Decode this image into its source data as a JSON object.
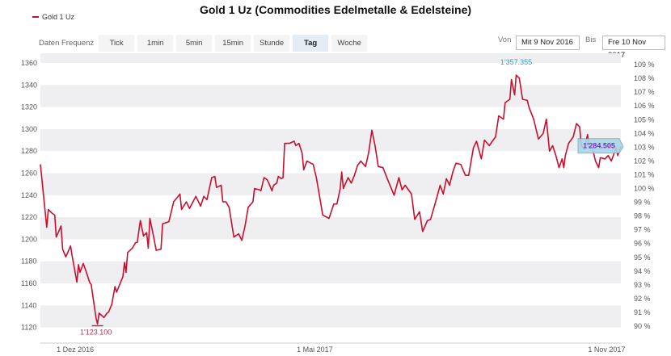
{
  "title": "Gold 1 Uz (Commodities Edelmetalle & Edelsteine)",
  "legend": {
    "label": "Gold 1 Uz",
    "color": "#c8102e"
  },
  "toolbar": {
    "label": "Daten Frequenz",
    "buttons": [
      "Tick",
      "1min",
      "5min",
      "15min",
      "Stunde",
      "Tag",
      "Woche"
    ],
    "selected": "Tag",
    "from_label": "Von",
    "from_value": "Mit 9 Nov 2016",
    "to_label": "Bis",
    "to_value": "Fre 10 Nov 2017"
  },
  "chart_data": {
    "type": "line",
    "title": "Gold 1 Uz (Commodities Edelmetalle & Edelsteine)",
    "x_range": [
      "2016-11-09",
      "2017-11-10"
    ],
    "x_ticks": [
      {
        "date": "2016-12-01",
        "label": "1 Dez 2016"
      },
      {
        "date": "2017-05-01",
        "label": "1 Mai 2017"
      },
      {
        "date": "2017-11-01",
        "label": "1 Nov 2017"
      }
    ],
    "y_left": {
      "range": [
        1106,
        1369
      ],
      "ticks": [
        1120,
        1140,
        1160,
        1180,
        1200,
        1220,
        1240,
        1260,
        1280,
        1300,
        1320,
        1340,
        1360
      ]
    },
    "y_right": {
      "range": [
        89,
        109.5
      ],
      "ticks": [
        "90 %",
        "91 %",
        "92 %",
        "93 %",
        "94 %",
        "95 %",
        "96 %",
        "97 %",
        "98 %",
        "99 %",
        "100 %",
        "101 %",
        "102 %",
        "103 %",
        "104 %",
        "105 %",
        "106 %",
        "107 %",
        "108 %",
        "109 %"
      ]
    },
    "grid": "alternating horizontal bands",
    "series": [
      {
        "name": "Gold 1 Uz",
        "color": "#c8102e",
        "dates": [
          "2016-11-09",
          "2016-11-13",
          "2016-11-14",
          "2016-11-16",
          "2016-11-18",
          "2016-11-19",
          "2016-11-22",
          "2016-11-23",
          "2016-11-25",
          "2016-11-28",
          "2016-11-29",
          "2016-12-02",
          "2016-12-03",
          "2016-12-04",
          "2016-12-06",
          "2016-12-08",
          "2016-12-10",
          "2016-12-11",
          "2016-12-14",
          "2016-12-15",
          "2016-12-16",
          "2016-12-19",
          "2016-12-21",
          "2016-12-22",
          "2016-12-24",
          "2016-12-26",
          "2016-12-27",
          "2016-12-29",
          "2016-12-31",
          "2017-01-01",
          "2017-01-02",
          "2017-01-03",
          "2017-01-06",
          "2017-01-08",
          "2017-01-09",
          "2017-01-11",
          "2017-01-13",
          "2017-01-15",
          "2017-01-16",
          "2017-01-17",
          "2017-01-19",
          "2017-01-21",
          "2017-01-24",
          "2017-01-25",
          "2017-01-29",
          "2017-02-01",
          "2017-02-05",
          "2017-02-06",
          "2017-02-09",
          "2017-02-11",
          "2017-02-15",
          "2017-02-18",
          "2017-02-20",
          "2017-02-22",
          "2017-02-25",
          "2017-02-27",
          "2017-02-28",
          "2017-03-03",
          "2017-03-04",
          "2017-03-06",
          "2017-03-08",
          "2017-03-11",
          "2017-03-14",
          "2017-03-16",
          "2017-03-18",
          "2017-03-20",
          "2017-03-23",
          "2017-03-24",
          "2017-03-27",
          "2017-03-28",
          "2017-03-30",
          "2017-04-01",
          "2017-04-02",
          "2017-04-04",
          "2017-04-05",
          "2017-04-07",
          "2017-04-08",
          "2017-04-10",
          "2017-04-11",
          "2017-04-12",
          "2017-04-15",
          "2017-04-18",
          "2017-04-19",
          "2017-04-21",
          "2017-04-23",
          "2017-04-24",
          "2017-04-26",
          "2017-04-30",
          "2017-05-02",
          "2017-05-04",
          "2017-05-06",
          "2017-05-10",
          "2017-05-13",
          "2017-05-15",
          "2017-05-17",
          "2017-05-18",
          "2017-05-19",
          "2017-05-22",
          "2017-05-24",
          "2017-05-26",
          "2017-05-28",
          "2017-05-30",
          "2017-06-02",
          "2017-06-04",
          "2017-06-06",
          "2017-06-08",
          "2017-06-10",
          "2017-06-13",
          "2017-06-16",
          "2017-06-20",
          "2017-06-23",
          "2017-06-25",
          "2017-06-27",
          "2017-07-01",
          "2017-07-03",
          "2017-07-06",
          "2017-07-08",
          "2017-07-11",
          "2017-07-13",
          "2017-07-17",
          "2017-07-19",
          "2017-07-21",
          "2017-07-23",
          "2017-07-25",
          "2017-07-27",
          "2017-07-29",
          "2017-08-01",
          "2017-08-04",
          "2017-08-06",
          "2017-08-09",
          "2017-08-11",
          "2017-08-14",
          "2017-08-16",
          "2017-08-19",
          "2017-08-21",
          "2017-08-23",
          "2017-08-25",
          "2017-08-28",
          "2017-08-29",
          "2017-09-01",
          "2017-09-02",
          "2017-09-04",
          "2017-09-05",
          "2017-09-07",
          "2017-09-09",
          "2017-09-12",
          "2017-09-13",
          "2017-09-16",
          "2017-09-19",
          "2017-09-22",
          "2017-09-24",
          "2017-09-26",
          "2017-09-28",
          "2017-09-30",
          "2017-10-02",
          "2017-10-04",
          "2017-10-05",
          "2017-10-06",
          "2017-10-08",
          "2017-10-11",
          "2017-10-13",
          "2017-10-15",
          "2017-10-16",
          "2017-10-18",
          "2017-10-20",
          "2017-10-21",
          "2017-10-23",
          "2017-10-25",
          "2017-10-27",
          "2017-10-28",
          "2017-10-31",
          "2017-11-02",
          "2017-11-04",
          "2017-11-07",
          "2017-11-08",
          "2017-11-10"
        ],
        "values": [
          1268,
          1211,
          1227,
          1224,
          1222,
          1202,
          1212,
          1191,
          1184,
          1194,
          1185,
          1161,
          1177,
          1170,
          1178,
          1170,
          1161,
          1159,
          1129,
          1123,
          1133,
          1129,
          1133,
          1134,
          1141,
          1157,
          1152,
          1159,
          1166,
          1179,
          1170,
          1188,
          1192,
          1197,
          1197,
          1217,
          1203,
          1206,
          1192,
          1219,
          1205,
          1190,
          1191,
          1214,
          1216,
          1234,
          1241,
          1227,
          1234,
          1228,
          1239,
          1230,
          1239,
          1236,
          1256,
          1257,
          1247,
          1249,
          1234,
          1234,
          1229,
          1202,
          1205,
          1199,
          1212,
          1229,
          1234,
          1246,
          1245,
          1244,
          1256,
          1254,
          1251,
          1244,
          1249,
          1251,
          1257,
          1255,
          1256,
          1287,
          1287,
          1289,
          1285,
          1287,
          1278,
          1263,
          1271,
          1268,
          1256,
          1239,
          1222,
          1219,
          1232,
          1232,
          1246,
          1261,
          1246,
          1256,
          1251,
          1258,
          1267,
          1271,
          1266,
          1279,
          1299,
          1285,
          1266,
          1265,
          1254,
          1240,
          1256,
          1245,
          1249,
          1241,
          1218,
          1225,
          1207,
          1217,
          1218,
          1238,
          1249,
          1241,
          1255,
          1249,
          1261,
          1269,
          1268,
          1258,
          1258,
          1283,
          1289,
          1273,
          1290,
          1285,
          1289,
          1293,
          1312,
          1309,
          1324,
          1327,
          1345,
          1331,
          1349,
          1346,
          1327,
          1326,
          1320,
          1309,
          1291,
          1296,
          1309,
          1280,
          1285,
          1276,
          1265,
          1273,
          1265,
          1276,
          1287,
          1293,
          1305,
          1302,
          1285,
          1282,
          1295,
          1283,
          1283,
          1271,
          1265,
          1274,
          1273,
          1276,
          1271,
          1283,
          1276,
          1284
        ]
      }
    ],
    "annotations": {
      "min_label": "1'123.100",
      "max_label": "1'357.355",
      "last_label": "1'284.505",
      "min_color": "#b03050",
      "max_color": "#3a9cc0",
      "last_color": "#7a2fc8"
    }
  }
}
